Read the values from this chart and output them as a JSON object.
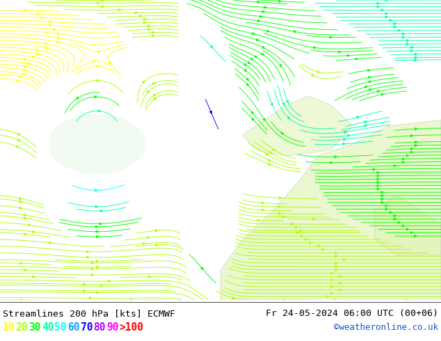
{
  "title_left": "Streamlines 200 hPa [kts] ECMWF",
  "title_right": "Fr 24-05-2024 06:00 UTC (00+06)",
  "credit": "©weatheronline.co.uk",
  "legend_values": [
    "10",
    "20",
    "30",
    "40",
    "50",
    "60",
    "70",
    "80",
    "90",
    ">100"
  ],
  "legend_colors": [
    "#ffff00",
    "#aaff00",
    "#00ff00",
    "#00ffaa",
    "#00ffff",
    "#00aaff",
    "#0000ff",
    "#aa00ff",
    "#ff00ff",
    "#ff0000"
  ],
  "bg_color": "#ffffff",
  "figsize": [
    6.34,
    4.9
  ],
  "dpi": 100,
  "map_bg": "#f5f5f5",
  "speed_thresholds": [
    0,
    10,
    20,
    30,
    40,
    50,
    60,
    70,
    80,
    90,
    100
  ],
  "land_color": "#d8f0a0",
  "coast_color": "#aaaaaa"
}
